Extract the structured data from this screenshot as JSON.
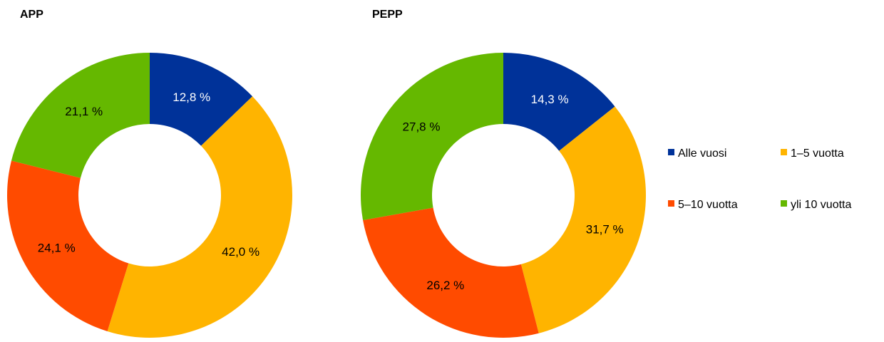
{
  "chart_data": [
    {
      "type": "pie",
      "title": "APP",
      "categories": [
        "Alle vuosi",
        "1–5 vuotta",
        "5–10 vuotta",
        "yli 10 vuotta"
      ],
      "values": [
        12.8,
        42.0,
        24.1,
        21.1
      ],
      "labels": [
        "12,8 %",
        "42,0 %",
        "24,1 %",
        "21,1 %"
      ],
      "donut": true,
      "start": "top",
      "direction": "clockwise"
    },
    {
      "type": "pie",
      "title": "PEPP",
      "categories": [
        "Alle vuosi",
        "1–5 vuotta",
        "5–10 vuotta",
        "yli 10 vuotta"
      ],
      "values": [
        14.3,
        31.7,
        26.2,
        27.8
      ],
      "labels": [
        "14,3 %",
        "31,7 %",
        "26,2 %",
        "27,8 %"
      ],
      "donut": true,
      "start": "top",
      "direction": "clockwise"
    }
  ],
  "legend": {
    "placement": "right",
    "items": [
      {
        "label": "Alle vuosi",
        "color": "#003299"
      },
      {
        "label": "1–5 vuotta",
        "color": "#FFB400"
      },
      {
        "label": "5–10 vuotta",
        "color": "#FF4B00"
      },
      {
        "label": "yli 10 vuotta",
        "color": "#65B800"
      }
    ]
  },
  "colors": [
    "#003299",
    "#FFB400",
    "#FF4B00",
    "#65B800"
  ],
  "label_colors": [
    "#ffffff",
    "#000000",
    "#000000",
    "#000000"
  ]
}
